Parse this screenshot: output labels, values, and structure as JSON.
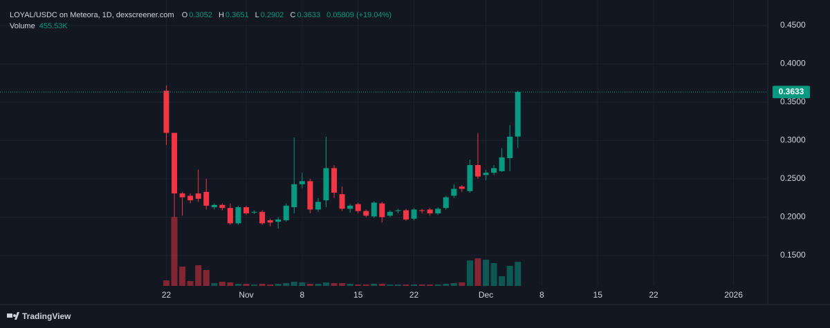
{
  "chart_data": {
    "type": "candlestick",
    "title": "LOYAL/USDC on Meteora, 1D, dexscreener.com",
    "ohlc_letters": [
      "O",
      "H",
      "L",
      "C"
    ],
    "change": "0.05809 (+19.04%)",
    "brand": "TradingView",
    "up_color": "#089981",
    "down_color": "#f23645",
    "grid": true,
    "categories": [
      "22",
      null,
      null,
      null,
      null,
      null,
      null,
      null,
      null,
      null,
      "Nov",
      null,
      null,
      null,
      null,
      null,
      null,
      "8",
      null,
      null,
      null,
      null,
      null,
      null,
      "15",
      null,
      null,
      null,
      null,
      null,
      null,
      "22",
      null,
      null,
      null,
      null,
      null,
      null,
      null,
      null,
      "Dec",
      null,
      null,
      null,
      null
    ],
    "future_ticks": [
      "8",
      "15",
      "22",
      "2026"
    ],
    "open": [
      0.365,
      0.31,
      0.231,
      0.228,
      0.231,
      0.233,
      0.213,
      0.216,
      0.212,
      0.192,
      0.213,
      0.206,
      0.207,
      0.196,
      0.194,
      0.196,
      0.213,
      0.243,
      0.247,
      0.21,
      0.222,
      0.264,
      0.23,
      0.211,
      0.217,
      0.208,
      0.201,
      0.218,
      0.202,
      0.208,
      0.209,
      0.198,
      0.209,
      0.21,
      0.205,
      0.212,
      0.228,
      0.24,
      0.234,
      0.268,
      0.255,
      0.258,
      0.26,
      0.277,
      0.3052
    ],
    "high": [
      0.372,
      0.31,
      0.233,
      0.231,
      0.262,
      0.25,
      0.218,
      0.218,
      0.218,
      0.215,
      0.215,
      0.209,
      0.209,
      0.198,
      0.2,
      0.218,
      0.304,
      0.258,
      0.25,
      0.225,
      0.305,
      0.268,
      0.24,
      0.217,
      0.219,
      0.21,
      0.221,
      0.22,
      0.209,
      0.211,
      0.211,
      0.212,
      0.211,
      0.212,
      0.213,
      0.228,
      0.243,
      0.242,
      0.275,
      0.31,
      0.262,
      0.268,
      0.29,
      0.32,
      0.3651
    ],
    "low": [
      0.294,
      0.2,
      0.202,
      0.218,
      0.22,
      0.21,
      0.21,
      0.209,
      0.19,
      0.19,
      0.203,
      0.204,
      0.19,
      0.188,
      0.185,
      0.194,
      0.205,
      0.238,
      0.205,
      0.207,
      0.213,
      0.225,
      0.208,
      0.206,
      0.205,
      0.2,
      0.199,
      0.193,
      0.2,
      0.205,
      0.195,
      0.196,
      0.205,
      0.202,
      0.203,
      0.21,
      0.225,
      0.233,
      0.232,
      0.25,
      0.248,
      0.255,
      0.259,
      0.26,
      0.2902
    ],
    "close": [
      0.31,
      0.231,
      0.226,
      0.222,
      0.224,
      0.215,
      0.216,
      0.212,
      0.192,
      0.213,
      0.205,
      0.207,
      0.192,
      0.193,
      0.197,
      0.215,
      0.243,
      0.247,
      0.21,
      0.22,
      0.264,
      0.232,
      0.211,
      0.215,
      0.208,
      0.202,
      0.219,
      0.2,
      0.207,
      0.209,
      0.197,
      0.21,
      0.208,
      0.205,
      0.211,
      0.226,
      0.237,
      0.237,
      0.268,
      0.253,
      0.258,
      0.264,
      0.278,
      0.305,
      0.3633
    ],
    "volume": {
      "name": "Volume",
      "values": [
        104000,
        1300000,
        364000,
        91000,
        390000,
        300000,
        52000,
        78000,
        65000,
        39000,
        39000,
        26000,
        39000,
        26000,
        39000,
        52000,
        78000,
        65000,
        39000,
        39000,
        65000,
        52000,
        52000,
        39000,
        26000,
        26000,
        39000,
        39000,
        26000,
        26000,
        26000,
        26000,
        26000,
        26000,
        26000,
        39000,
        52000,
        65000,
        480000,
        520000,
        495000,
        430000,
        182000,
        377000,
        455530
      ],
      "value_labels": [
        null,
        null,
        null,
        null,
        null,
        null,
        null,
        null,
        null,
        null,
        null,
        null,
        null,
        null,
        null,
        null,
        null,
        null,
        null,
        null,
        null,
        null,
        null,
        null,
        null,
        null,
        null,
        null,
        null,
        null,
        null,
        null,
        null,
        null,
        null,
        null,
        null,
        null,
        null,
        null,
        null,
        null,
        null,
        null,
        "455.53K"
      ],
      "axis": "y2"
    },
    "ylim": [
      0.1104,
      0.4833
    ],
    "yticks": [
      {
        "value": 0.15,
        "label": "0.1500"
      },
      {
        "value": 0.2,
        "label": "0.2000"
      },
      {
        "value": 0.25,
        "label": "0.2500"
      },
      {
        "value": 0.3,
        "label": "0.3000"
      },
      {
        "value": 0.35,
        "label": "0.3500"
      },
      {
        "value": 0.4,
        "label": "0.4000"
      },
      {
        "value": 0.45,
        "label": "0.4500"
      }
    ],
    "y2lim": [
      0,
      5400000
    ]
  }
}
